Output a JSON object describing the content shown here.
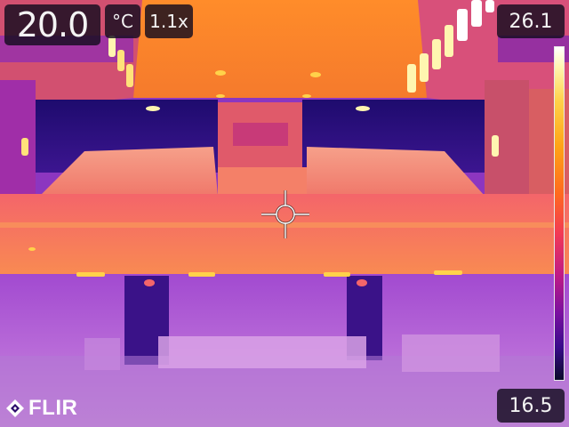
{
  "camera": {
    "spot_temperature": "20.0",
    "unit": "°C",
    "zoom": "1.1x",
    "scale_max": "26.1",
    "scale_min": "16.5",
    "brand": "FLIR"
  },
  "palette": {
    "hot": "#fff6b0",
    "warm": "#ffa316",
    "mid": "#f2506a",
    "cool": "#7a10a0",
    "cold": "#2a0a6a"
  },
  "icons": {
    "crosshair": "crosshair-icon",
    "logo": "flir-logo-icon"
  }
}
